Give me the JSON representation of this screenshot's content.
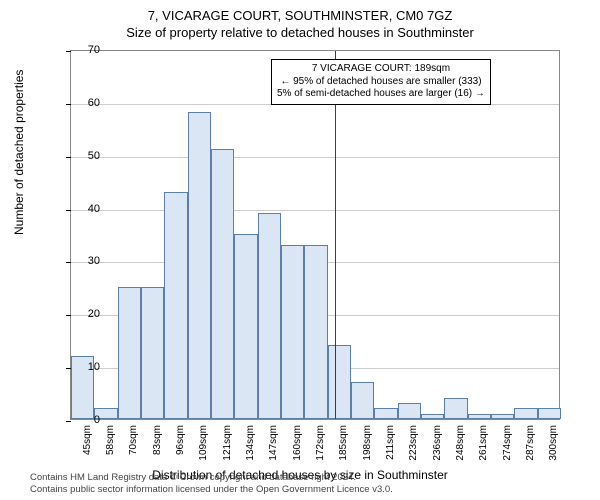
{
  "title_line1": "7, VICARAGE COURT, SOUTHMINSTER, CM0 7GZ",
  "title_line2": "Size of property relative to detached houses in Southminster",
  "ylabel": "Number of detached properties",
  "xlabel": "Distribution of detached houses by size in Southminster",
  "chart": {
    "type": "histogram",
    "ylim": [
      0,
      70
    ],
    "ytick_step": 10,
    "bar_fill": "#dbe6f4",
    "bar_stroke": "#5b7fa6",
    "grid_color": "#cccccc",
    "background": "#ffffff",
    "ref_line_color": "#cc0000",
    "ref_line_at_index": 11.3,
    "categories": [
      "45sqm",
      "58sqm",
      "70sqm",
      "83sqm",
      "96sqm",
      "109sqm",
      "121sqm",
      "134sqm",
      "147sqm",
      "160sqm",
      "172sqm",
      "185sqm",
      "198sqm",
      "211sqm",
      "223sqm",
      "236sqm",
      "248sqm",
      "261sqm",
      "274sqm",
      "287sqm",
      "300sqm"
    ],
    "values": [
      12,
      2,
      25,
      25,
      43,
      58,
      51,
      35,
      39,
      33,
      33,
      14,
      7,
      2,
      3,
      1,
      4,
      1,
      1,
      2,
      2
    ]
  },
  "annotation": {
    "line1": "7 VICARAGE COURT: 189sqm",
    "line2": "← 95% of detached houses are smaller (333)",
    "line3": "5% of semi-detached houses are larger (16) →"
  },
  "footer": {
    "line1": "Contains HM Land Registry data © Crown copyright and database right 2024.",
    "line2": "Contains public sector information licensed under the Open Government Licence v3.0."
  }
}
